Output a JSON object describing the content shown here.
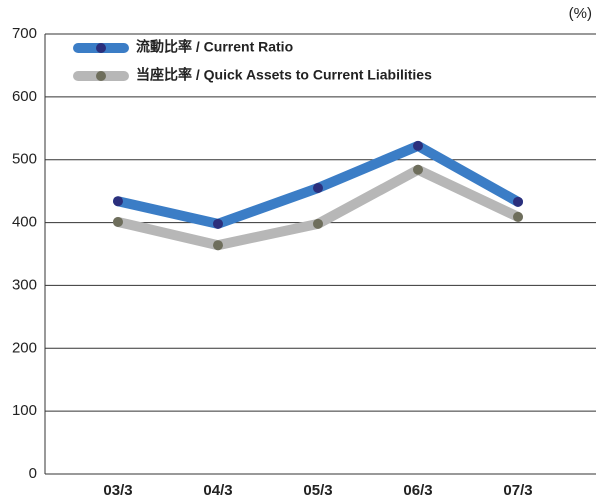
{
  "chart_data": {
    "type": "line",
    "unit_label": "(%)",
    "categories": [
      "03/3",
      "04/3",
      "05/3",
      "06/3",
      "07/3"
    ],
    "series": [
      {
        "name": "流動比率 / Current Ratio",
        "color": "#3b7dc6",
        "marker_color": "#2b2f7c",
        "values": [
          434,
          398,
          455,
          522,
          433
        ]
      },
      {
        "name": "当座比率 / Quick Assets to Current Liabilities",
        "color": "#b7b7b7",
        "marker_color": "#6e6e5c",
        "values": [
          401,
          364,
          398,
          484,
          409
        ]
      }
    ],
    "ylim": [
      0,
      700
    ],
    "yticks": [
      0,
      100,
      200,
      300,
      400,
      500,
      600,
      700
    ],
    "grid": true
  }
}
